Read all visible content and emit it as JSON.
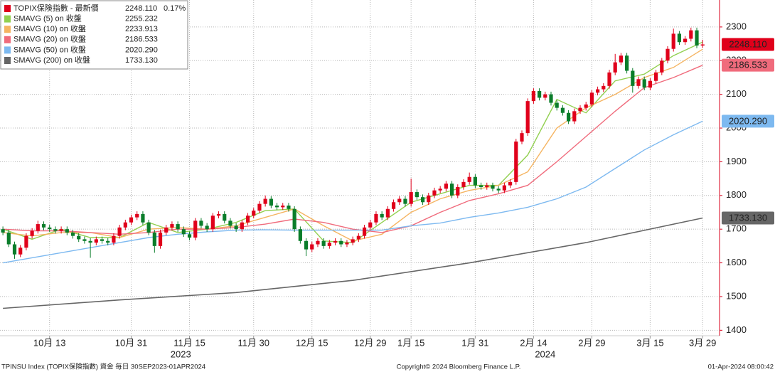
{
  "chart_data": {
    "type": "candlestick",
    "candle": {
      "name": "TOPIX保険指數 - 最新價",
      "value_label": "2248.110",
      "change_label": "0.17%",
      "up_color": "#e0001b",
      "down_color": "#0a7d2a",
      "open": [
        1700,
        1690,
        1655,
        1625,
        1645,
        1680,
        1695,
        1715,
        1705,
        1700,
        1695,
        1700,
        1690,
        1680,
        1670,
        1665,
        1660,
        1670,
        1665,
        1660,
        1680,
        1705,
        1720,
        1735,
        1745,
        1720,
        1690,
        1650,
        1690,
        1705,
        1715,
        1700,
        1685,
        1675,
        1725,
        1710,
        1700,
        1740,
        1745,
        1725,
        1710,
        1700,
        1720,
        1740,
        1755,
        1775,
        1790,
        1770,
        1765,
        1770,
        1760,
        1700,
        1665,
        1640,
        1655,
        1665,
        1650,
        1660,
        1665,
        1655,
        1660,
        1670,
        1680,
        1705,
        1720,
        1745,
        1735,
        1760,
        1780,
        1790,
        1775,
        1810,
        1795,
        1780,
        1800,
        1815,
        1820,
        1835,
        1800,
        1825,
        1840,
        1855,
        1830,
        1825,
        1830,
        1820,
        1815,
        1830,
        1840,
        1960,
        1985,
        2080,
        2110,
        2090,
        2100,
        2075,
        2060,
        2045,
        2020,
        2050,
        2060,
        2070,
        2105,
        2115,
        2125,
        2165,
        2195,
        2215,
        2170,
        2125,
        2145,
        2120,
        2140,
        2165,
        2200,
        2235,
        2280,
        2255,
        2265,
        2290,
        2245
      ],
      "high": [
        1708,
        1698,
        1663,
        1653,
        1688,
        1703,
        1725,
        1723,
        1713,
        1708,
        1708,
        1708,
        1698,
        1688,
        1678,
        1673,
        1678,
        1678,
        1673,
        1688,
        1713,
        1728,
        1743,
        1753,
        1753,
        1728,
        1698,
        1698,
        1713,
        1723,
        1723,
        1708,
        1693,
        1733,
        1733,
        1718,
        1748,
        1753,
        1753,
        1733,
        1718,
        1728,
        1748,
        1763,
        1783,
        1800,
        1798,
        1778,
        1778,
        1778,
        1768,
        1708,
        1673,
        1663,
        1673,
        1673,
        1668,
        1673,
        1673,
        1668,
        1678,
        1688,
        1713,
        1728,
        1753,
        1753,
        1768,
        1788,
        1798,
        1798,
        1850,
        1818,
        1803,
        1808,
        1823,
        1828,
        1843,
        1843,
        1833,
        1848,
        1868,
        1863,
        1838,
        1838,
        1838,
        1828,
        1838,
        1848,
        1968,
        1993,
        2088,
        2118,
        2118,
        2108,
        2108,
        2083,
        2068,
        2053,
        2058,
        2068,
        2078,
        2113,
        2123,
        2133,
        2173,
        2220,
        2223,
        2223,
        2178,
        2153,
        2153,
        2148,
        2173,
        2208,
        2243,
        2295,
        2288,
        2273,
        2298,
        2298,
        2262
      ],
      "low": [
        1682,
        1647,
        1612,
        1617,
        1637,
        1672,
        1687,
        1697,
        1692,
        1687,
        1687,
        1682,
        1672,
        1662,
        1657,
        1615,
        1652,
        1657,
        1652,
        1652,
        1672,
        1697,
        1712,
        1727,
        1712,
        1682,
        1630,
        1642,
        1682,
        1697,
        1692,
        1677,
        1667,
        1667,
        1702,
        1692,
        1692,
        1732,
        1717,
        1702,
        1692,
        1692,
        1712,
        1732,
        1747,
        1767,
        1762,
        1757,
        1757,
        1752,
        1692,
        1657,
        1620,
        1632,
        1647,
        1642,
        1642,
        1652,
        1647,
        1647,
        1652,
        1662,
        1672,
        1697,
        1712,
        1727,
        1727,
        1752,
        1772,
        1767,
        1767,
        1787,
        1772,
        1772,
        1792,
        1807,
        1812,
        1792,
        1792,
        1817,
        1832,
        1822,
        1817,
        1817,
        1812,
        1807,
        1807,
        1822,
        1832,
        1952,
        1977,
        2072,
        2082,
        2082,
        2067,
        2052,
        2037,
        2012,
        2012,
        2042,
        2052,
        2062,
        2097,
        2107,
        2117,
        2157,
        2187,
        2162,
        2105,
        2117,
        2112,
        2112,
        2132,
        2157,
        2192,
        2227,
        2247,
        2247,
        2257,
        2237,
        2238
      ],
      "close": [
        1690,
        1655,
        1625,
        1645,
        1680,
        1695,
        1715,
        1705,
        1700,
        1695,
        1700,
        1690,
        1680,
        1670,
        1665,
        1660,
        1670,
        1665,
        1660,
        1680,
        1705,
        1720,
        1735,
        1745,
        1720,
        1690,
        1650,
        1690,
        1705,
        1715,
        1700,
        1685,
        1675,
        1725,
        1710,
        1700,
        1740,
        1745,
        1725,
        1710,
        1700,
        1720,
        1740,
        1755,
        1775,
        1790,
        1770,
        1765,
        1770,
        1760,
        1700,
        1665,
        1640,
        1655,
        1665,
        1650,
        1660,
        1665,
        1655,
        1660,
        1670,
        1680,
        1705,
        1720,
        1745,
        1735,
        1760,
        1780,
        1790,
        1775,
        1810,
        1795,
        1780,
        1800,
        1815,
        1820,
        1835,
        1800,
        1825,
        1840,
        1855,
        1830,
        1825,
        1830,
        1820,
        1815,
        1830,
        1840,
        1960,
        1985,
        2080,
        2110,
        2090,
        2100,
        2075,
        2060,
        2045,
        2020,
        2050,
        2060,
        2070,
        2105,
        2115,
        2125,
        2165,
        2195,
        2215,
        2170,
        2125,
        2145,
        2120,
        2140,
        2165,
        2200,
        2235,
        2280,
        2255,
        2265,
        2290,
        2245,
        2248.11
      ]
    },
    "series": [
      {
        "name": "SMAVG (5)  on 收盤",
        "value_label": "2255.232",
        "color": "#92d050",
        "x": [
          0,
          5,
          10,
          15,
          20,
          25,
          30,
          35,
          40,
          45,
          50,
          55,
          60,
          65,
          70,
          75,
          80,
          85,
          90,
          95,
          100,
          105,
          110,
          115,
          120
        ],
        "values": [
          1700,
          1670,
          1700,
          1675,
          1675,
          1720,
          1690,
          1700,
          1720,
          1755,
          1760,
          1665,
          1660,
          1720,
          1780,
          1805,
          1830,
          1830,
          1920,
          2085,
          2045,
          2140,
          2160,
          2215,
          2255.232
        ]
      },
      {
        "name": "SMAVG (10)  on 收盤",
        "value_label": "2233.913",
        "color": "#f5b461",
        "x": [
          0,
          5,
          10,
          15,
          20,
          25,
          30,
          35,
          40,
          45,
          50,
          55,
          60,
          65,
          70,
          75,
          80,
          85,
          90,
          95,
          100,
          105,
          110,
          115,
          120
        ],
        "values": [
          1690,
          1680,
          1690,
          1690,
          1675,
          1700,
          1705,
          1700,
          1710,
          1735,
          1760,
          1710,
          1665,
          1685,
          1750,
          1790,
          1815,
          1830,
          1870,
          2000,
          2060,
          2100,
          2150,
          2180,
          2233.913
        ]
      },
      {
        "name": "SMAVG (20)  on 收盤",
        "value_label": "2186.533",
        "color": "#f06b7c",
        "box": true,
        "x": [
          0,
          5,
          10,
          15,
          20,
          25,
          30,
          35,
          40,
          45,
          50,
          55,
          60,
          65,
          70,
          75,
          80,
          85,
          90,
          95,
          100,
          105,
          110,
          115,
          120
        ],
        "values": [
          1700,
          1695,
          1695,
          1690,
          1685,
          1690,
          1700,
          1700,
          1705,
          1715,
          1730,
          1720,
          1700,
          1690,
          1710,
          1750,
          1785,
          1805,
          1830,
          1900,
          1975,
          2050,
          2120,
          2150,
          2186.533
        ]
      },
      {
        "name": "SMAVG (50)  on 收盤",
        "value_label": "2020.290",
        "color": "#7db9f0",
        "box": true,
        "x": [
          0,
          5,
          10,
          15,
          20,
          25,
          30,
          35,
          40,
          45,
          50,
          55,
          60,
          65,
          70,
          75,
          80,
          85,
          90,
          95,
          100,
          105,
          110,
          115,
          120
        ],
        "values": [
          1600,
          1615,
          1630,
          1645,
          1660,
          1675,
          1685,
          1692,
          1697,
          1698,
          1697,
          1697,
          1697,
          1697,
          1710,
          1718,
          1735,
          1748,
          1765,
          1790,
          1825,
          1880,
          1935,
          1980,
          2020.29
        ]
      },
      {
        "name": "SMAVG (200)  on 收盤",
        "value_label": "1733.130",
        "color": "#666666",
        "box": true,
        "x": [
          0,
          20,
          40,
          60,
          80,
          100,
          120
        ],
        "values": [
          1465,
          1490,
          1512,
          1548,
          1600,
          1660,
          1733.13
        ]
      }
    ],
    "xlim": [
      -0.5,
      122.9
    ],
    "xticks": [
      {
        "value": 8,
        "label": "10月 13"
      },
      {
        "value": 22,
        "label": "10月 31"
      },
      {
        "value": 32,
        "label": "11月 15"
      },
      {
        "value": 43,
        "label": "11月 30"
      },
      {
        "value": 53,
        "label": "12月 15"
      },
      {
        "value": 63,
        "label": "12月 29"
      },
      {
        "value": 70,
        "label": "1月 15"
      },
      {
        "value": 81,
        "label": "1月 31"
      },
      {
        "value": 91,
        "label": "2月 14"
      },
      {
        "value": 101,
        "label": "2月 29"
      },
      {
        "value": 111,
        "label": "3月 15"
      },
      {
        "value": 120,
        "label": "3月 29"
      }
    ],
    "year_labels": [
      {
        "value": 30.5,
        "label": "2023"
      },
      {
        "value": 93,
        "label": "2024"
      }
    ],
    "ylim": [
      1388,
      2380
    ],
    "yticks": [
      1400,
      1500,
      1600,
      1700,
      1800,
      1900,
      2000,
      2100,
      2200,
      2300
    ],
    "grid": true,
    "footer": {
      "left": "TPINSU Index (TOPIX保険指數) 資金  毎日 30SEP2023-01APR2024",
      "center": "Copyright© 2024 Bloomberg Finance L.P.",
      "right": "01-Apr-2024 08:00:42"
    }
  }
}
